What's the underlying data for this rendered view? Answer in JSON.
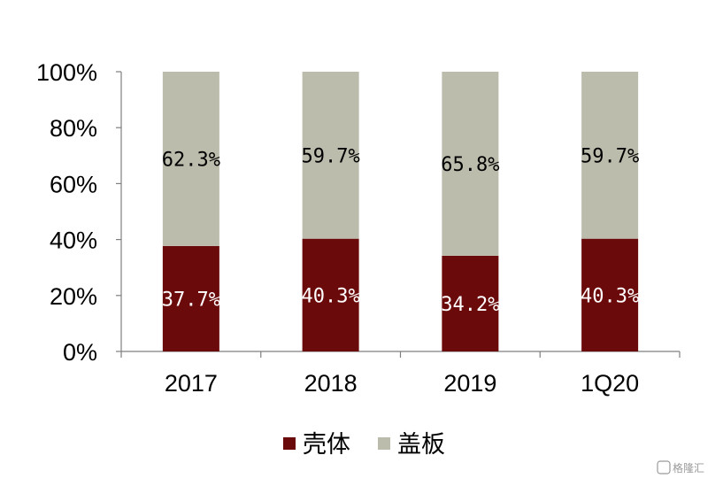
{
  "chart_data": {
    "type": "bar",
    "stacked": true,
    "categories": [
      "2017",
      "2018",
      "2019",
      "1Q20"
    ],
    "series": [
      {
        "name": "壳体",
        "values": [
          37.7,
          40.3,
          34.2,
          40.3
        ],
        "labels": [
          "37.7%",
          "40.3%",
          "34.2%",
          "40.3%"
        ],
        "color": "#6b0a0a"
      },
      {
        "name": "盖板",
        "values": [
          62.3,
          59.7,
          65.8,
          59.7
        ],
        "labels": [
          "62.3%",
          "59.7%",
          "65.8%",
          "59.7%"
        ],
        "color": "#bcbcac"
      }
    ],
    "ylim": [
      0,
      100
    ],
    "yticks": [
      "0%",
      "20%",
      "40%",
      "60%",
      "80%",
      "100%"
    ],
    "grid": false,
    "legend": "bottom"
  },
  "watermark": {
    "text": "格隆汇"
  }
}
